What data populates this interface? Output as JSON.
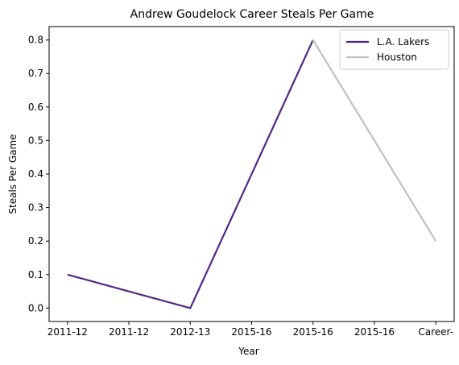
{
  "chart_data": {
    "type": "line",
    "title": "Andrew Goudelock Career Steals Per Game",
    "xlabel": "Year",
    "ylabel": "Steals Per Game",
    "categories": [
      "2011-12",
      "2011-12",
      "2012-13",
      "2015-16",
      "2015-16",
      "2015-16",
      "Career-"
    ],
    "ylim": [
      -0.04,
      0.84
    ],
    "yticks": [
      0.0,
      0.1,
      0.2,
      0.3,
      0.4,
      0.5,
      0.6,
      0.7,
      0.8
    ],
    "grid": false,
    "legend_position": "top-right",
    "series": [
      {
        "name": "L.A. Lakers",
        "color": "#552583",
        "points": [
          [
            0,
            0.1
          ],
          [
            2,
            0.0
          ],
          [
            4,
            0.8
          ]
        ]
      },
      {
        "name": "Houston",
        "color": "#C0C0C0",
        "points": [
          [
            4,
            0.8
          ],
          [
            6,
            0.2
          ]
        ]
      }
    ]
  }
}
